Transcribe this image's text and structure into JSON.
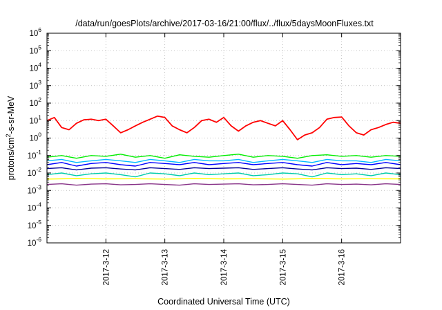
{
  "chart_data": {
    "type": "line",
    "title": "/data/run/goesPlots/archive/2017-03-16/21:00/flux/../flux/5daysMoonFluxes.txt",
    "xlabel": "Coordinated Universal Time (UTC)",
    "ylabel": "protons/cm²-s-sr-MeV",
    "ylabel_parts": [
      "protons/cm",
      "2",
      "-s-sr-MeV"
    ],
    "y_scale": "log",
    "ylim": [
      1e-06,
      1000000.0
    ],
    "y_ticks": [
      {
        "value": 1e-06,
        "base": "10",
        "exp": "-6"
      },
      {
        "value": 1e-05,
        "base": "10",
        "exp": "-5"
      },
      {
        "value": 0.0001,
        "base": "10",
        "exp": "-4"
      },
      {
        "value": 0.001,
        "base": "10",
        "exp": "-3"
      },
      {
        "value": 0.01,
        "base": "10",
        "exp": "-2"
      },
      {
        "value": 0.1,
        "base": "10",
        "exp": "-1"
      },
      {
        "value": 1.0,
        "base": "10",
        "exp": "0"
      },
      {
        "value": 10.0,
        "base": "10",
        "exp": "1"
      },
      {
        "value": 100.0,
        "base": "10",
        "exp": "2"
      },
      {
        "value": 1000.0,
        "base": "10",
        "exp": "3"
      },
      {
        "value": 10000.0,
        "base": "10",
        "exp": "4"
      },
      {
        "value": 100000.0,
        "base": "10",
        "exp": "5"
      },
      {
        "value": 1000000.0,
        "base": "10",
        "exp": "6"
      }
    ],
    "xlim": [
      "2017-03-11 00:00",
      "2017-03-17 00:00"
    ],
    "x_ticks": [
      "2017-3-12",
      "2017-3-13",
      "2017-3-14",
      "2017-3-15",
      "2017-3-16"
    ],
    "x_tick_dates": [
      "2017-03-12",
      "2017-03-13",
      "2017-03-14",
      "2017-03-15",
      "2017-03-16"
    ],
    "grid": true,
    "legend": "none",
    "series": [
      {
        "color": "#ff0000",
        "x": [
          "2017-03-11 00:00",
          "2017-03-11 03:00",
          "2017-03-11 06:00",
          "2017-03-11 09:00",
          "2017-03-11 12:00",
          "2017-03-11 15:00",
          "2017-03-11 18:00",
          "2017-03-11 21:00",
          "2017-03-12 00:00",
          "2017-03-12 03:00",
          "2017-03-12 06:00",
          "2017-03-12 09:00",
          "2017-03-12 12:00",
          "2017-03-12 15:00",
          "2017-03-12 18:00",
          "2017-03-12 21:00",
          "2017-03-13 00:00",
          "2017-03-13 03:00",
          "2017-03-13 06:00",
          "2017-03-13 09:00",
          "2017-03-13 12:00",
          "2017-03-13 15:00",
          "2017-03-13 18:00",
          "2017-03-13 21:00",
          "2017-03-14 00:00",
          "2017-03-14 03:00",
          "2017-03-14 06:00",
          "2017-03-14 09:00",
          "2017-03-14 12:00",
          "2017-03-14 15:00",
          "2017-03-14 18:00",
          "2017-03-14 21:00",
          "2017-03-15 00:00",
          "2017-03-15 03:00",
          "2017-03-15 06:00",
          "2017-03-15 09:00",
          "2017-03-15 12:00",
          "2017-03-15 15:00",
          "2017-03-15 18:00",
          "2017-03-15 21:00",
          "2017-03-16 00:00",
          "2017-03-16 03:00",
          "2017-03-16 06:00",
          "2017-03-16 09:00",
          "2017-03-16 12:00",
          "2017-03-16 15:00",
          "2017-03-16 18:00",
          "2017-03-16 21:00",
          "2017-03-17 00:00"
        ],
        "y": [
          10,
          15,
          4,
          3,
          7,
          11,
          12,
          10,
          12,
          5,
          2,
          3,
          5,
          8,
          12,
          18,
          15,
          5,
          3,
          2,
          4,
          10,
          12,
          8,
          15,
          5,
          2.5,
          5,
          8,
          10,
          7,
          5,
          10,
          3,
          0.8,
          1.5,
          2,
          4,
          12,
          15,
          16,
          5,
          2,
          1.5,
          3,
          4,
          6,
          8,
          7
        ]
      },
      {
        "color": "#00ee00",
        "x": [
          "2017-03-11 00:00",
          "2017-03-11 06:00",
          "2017-03-11 12:00",
          "2017-03-11 18:00",
          "2017-03-12 00:00",
          "2017-03-12 06:00",
          "2017-03-12 12:00",
          "2017-03-12 18:00",
          "2017-03-13 00:00",
          "2017-03-13 06:00",
          "2017-03-13 12:00",
          "2017-03-13 18:00",
          "2017-03-14 00:00",
          "2017-03-14 06:00",
          "2017-03-14 12:00",
          "2017-03-14 18:00",
          "2017-03-15 00:00",
          "2017-03-15 06:00",
          "2017-03-15 12:00",
          "2017-03-15 18:00",
          "2017-03-16 00:00",
          "2017-03-16 06:00",
          "2017-03-16 12:00",
          "2017-03-16 18:00",
          "2017-03-17 00:00"
        ],
        "y": [
          0.08,
          0.1,
          0.07,
          0.1,
          0.09,
          0.12,
          0.08,
          0.1,
          0.07,
          0.11,
          0.09,
          0.08,
          0.1,
          0.12,
          0.08,
          0.1,
          0.09,
          0.07,
          0.1,
          0.11,
          0.09,
          0.1,
          0.08,
          0.1,
          0.09
        ]
      },
      {
        "color": "#00bbff",
        "x": [
          "2017-03-11 00:00",
          "2017-03-11 06:00",
          "2017-03-11 12:00",
          "2017-03-11 18:00",
          "2017-03-12 00:00",
          "2017-03-12 06:00",
          "2017-03-12 12:00",
          "2017-03-12 18:00",
          "2017-03-13 00:00",
          "2017-03-13 06:00",
          "2017-03-13 12:00",
          "2017-03-13 18:00",
          "2017-03-14 00:00",
          "2017-03-14 06:00",
          "2017-03-14 12:00",
          "2017-03-14 18:00",
          "2017-03-15 00:00",
          "2017-03-15 06:00",
          "2017-03-15 12:00",
          "2017-03-15 18:00",
          "2017-03-16 00:00",
          "2017-03-16 06:00",
          "2017-03-16 12:00",
          "2017-03-16 18:00",
          "2017-03-17 00:00"
        ],
        "y": [
          0.05,
          0.06,
          0.04,
          0.05,
          0.06,
          0.05,
          0.04,
          0.06,
          0.05,
          0.04,
          0.06,
          0.05,
          0.05,
          0.06,
          0.04,
          0.05,
          0.06,
          0.05,
          0.04,
          0.06,
          0.05,
          0.05,
          0.04,
          0.06,
          0.05
        ]
      },
      {
        "color": "#00ccaa",
        "x": [
          "2017-03-11 00:00",
          "2017-03-11 06:00",
          "2017-03-11 12:00",
          "2017-03-11 18:00",
          "2017-03-12 00:00",
          "2017-03-12 06:00",
          "2017-03-12 12:00",
          "2017-03-12 18:00",
          "2017-03-13 00:00",
          "2017-03-13 06:00",
          "2017-03-13 12:00",
          "2017-03-13 18:00",
          "2017-03-14 00:00",
          "2017-03-14 06:00",
          "2017-03-14 12:00",
          "2017-03-14 18:00",
          "2017-03-15 00:00",
          "2017-03-15 06:00",
          "2017-03-15 12:00",
          "2017-03-15 18:00",
          "2017-03-16 00:00",
          "2017-03-16 06:00",
          "2017-03-16 12:00",
          "2017-03-16 18:00",
          "2017-03-17 00:00"
        ],
        "y": [
          0.008,
          0.01,
          0.007,
          0.009,
          0.01,
          0.008,
          0.006,
          0.01,
          0.009,
          0.007,
          0.01,
          0.008,
          0.009,
          0.01,
          0.007,
          0.008,
          0.01,
          0.009,
          0.006,
          0.01,
          0.008,
          0.009,
          0.007,
          0.01,
          0.008
        ]
      },
      {
        "color": "#0000ff",
        "x": [
          "2017-03-11 00:00",
          "2017-03-11 06:00",
          "2017-03-11 12:00",
          "2017-03-11 18:00",
          "2017-03-12 00:00",
          "2017-03-12 06:00",
          "2017-03-12 12:00",
          "2017-03-12 18:00",
          "2017-03-13 00:00",
          "2017-03-13 06:00",
          "2017-03-13 12:00",
          "2017-03-13 18:00",
          "2017-03-14 00:00",
          "2017-03-14 06:00",
          "2017-03-14 12:00",
          "2017-03-14 18:00",
          "2017-03-15 00:00",
          "2017-03-15 06:00",
          "2017-03-15 12:00",
          "2017-03-15 18:00",
          "2017-03-16 00:00",
          "2017-03-16 06:00",
          "2017-03-16 12:00",
          "2017-03-16 18:00",
          "2017-03-17 00:00"
        ],
        "y": [
          0.03,
          0.04,
          0.025,
          0.035,
          0.04,
          0.03,
          0.025,
          0.04,
          0.035,
          0.03,
          0.04,
          0.03,
          0.035,
          0.04,
          0.03,
          0.035,
          0.04,
          0.03,
          0.025,
          0.04,
          0.03,
          0.035,
          0.03,
          0.04,
          0.03
        ]
      },
      {
        "color": "#000099",
        "x": [
          "2017-03-11 00:00",
          "2017-03-11 06:00",
          "2017-03-11 12:00",
          "2017-03-11 18:00",
          "2017-03-12 00:00",
          "2017-03-12 06:00",
          "2017-03-12 12:00",
          "2017-03-12 18:00",
          "2017-03-13 00:00",
          "2017-03-13 06:00",
          "2017-03-13 12:00",
          "2017-03-13 18:00",
          "2017-03-14 00:00",
          "2017-03-14 06:00",
          "2017-03-14 12:00",
          "2017-03-14 18:00",
          "2017-03-15 00:00",
          "2017-03-15 06:00",
          "2017-03-15 12:00",
          "2017-03-15 18:00",
          "2017-03-16 00:00",
          "2017-03-16 06:00",
          "2017-03-16 12:00",
          "2017-03-16 18:00",
          "2017-03-17 00:00"
        ],
        "y": [
          0.018,
          0.02,
          0.015,
          0.019,
          0.02,
          0.017,
          0.015,
          0.02,
          0.018,
          0.016,
          0.02,
          0.018,
          0.019,
          0.02,
          0.016,
          0.018,
          0.02,
          0.017,
          0.015,
          0.02,
          0.018,
          0.019,
          0.016,
          0.02,
          0.018
        ]
      },
      {
        "color": "#ffff00",
        "x": [
          "2017-03-11 00:00",
          "2017-03-11 12:00",
          "2017-03-12 00:00",
          "2017-03-12 12:00",
          "2017-03-13 00:00",
          "2017-03-13 12:00",
          "2017-03-14 00:00",
          "2017-03-14 12:00",
          "2017-03-15 00:00",
          "2017-03-15 12:00",
          "2017-03-16 00:00",
          "2017-03-16 12:00",
          "2017-03-17 00:00"
        ],
        "y": [
          0.0045,
          0.0048,
          0.0046,
          0.0047,
          0.0045,
          0.0048,
          0.0046,
          0.0047,
          0.0045,
          0.0048,
          0.0046,
          0.0047,
          0.0046
        ]
      },
      {
        "color": "#883388",
        "x": [
          "2017-03-11 00:00",
          "2017-03-11 06:00",
          "2017-03-11 12:00",
          "2017-03-11 18:00",
          "2017-03-12 00:00",
          "2017-03-12 06:00",
          "2017-03-12 12:00",
          "2017-03-12 18:00",
          "2017-03-13 00:00",
          "2017-03-13 06:00",
          "2017-03-13 12:00",
          "2017-03-13 18:00",
          "2017-03-14 00:00",
          "2017-03-14 06:00",
          "2017-03-14 12:00",
          "2017-03-14 18:00",
          "2017-03-15 00:00",
          "2017-03-15 06:00",
          "2017-03-15 12:00",
          "2017-03-15 18:00",
          "2017-03-16 00:00",
          "2017-03-16 06:00",
          "2017-03-16 12:00",
          "2017-03-16 18:00",
          "2017-03-17 00:00"
        ],
        "y": [
          0.0022,
          0.0024,
          0.002,
          0.0023,
          0.0024,
          0.0021,
          0.0022,
          0.0024,
          0.0022,
          0.002,
          0.0024,
          0.0022,
          0.0023,
          0.0024,
          0.0021,
          0.0022,
          0.0024,
          0.0022,
          0.002,
          0.0024,
          0.0022,
          0.0023,
          0.0021,
          0.0024,
          0.0022
        ]
      }
    ]
  }
}
